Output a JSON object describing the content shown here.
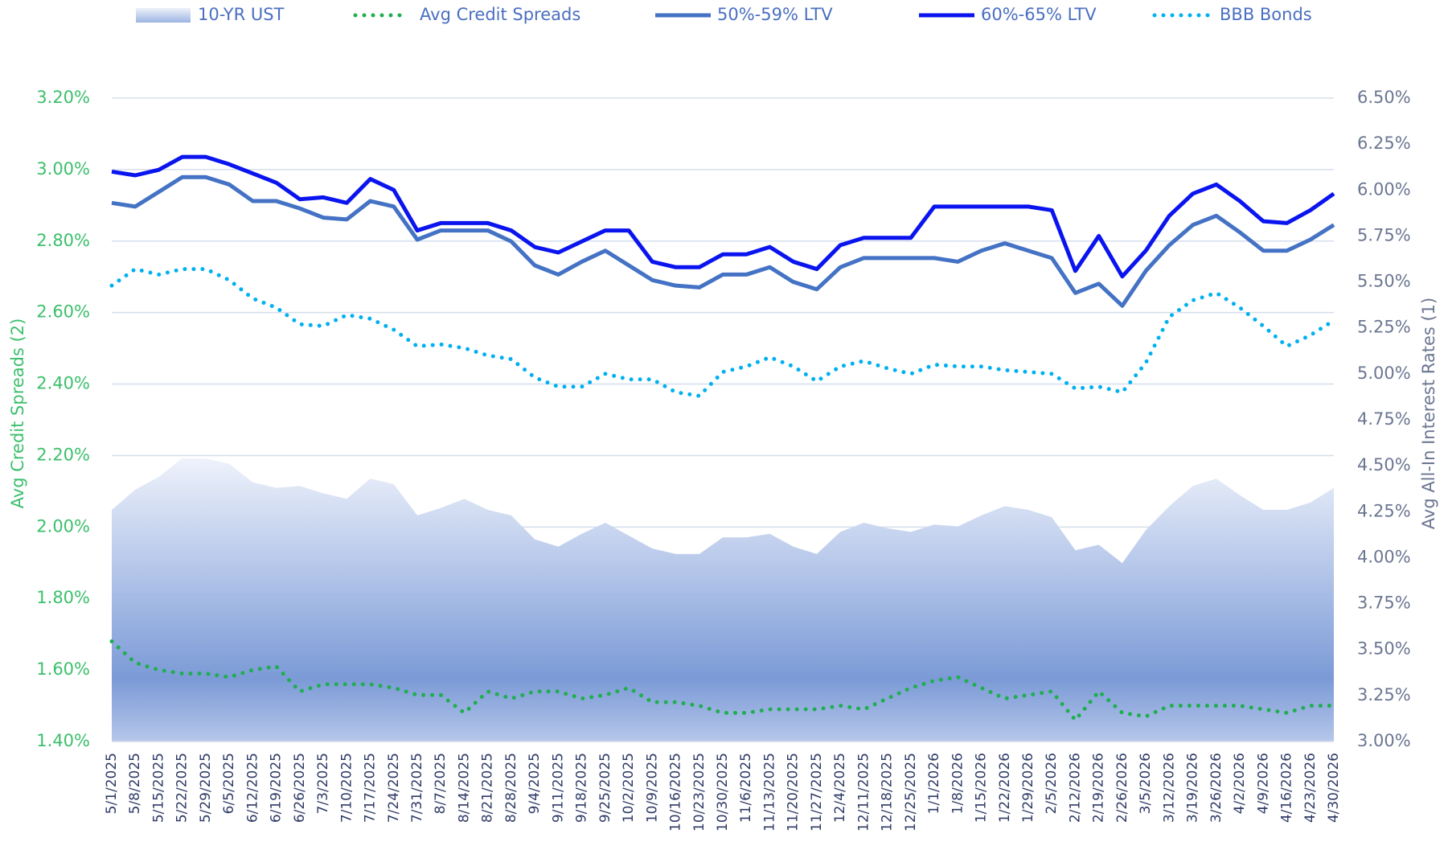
{
  "chart_data": {
    "type": "line",
    "ylabel": "Avg Credit Spreads (2)",
    "y2label": "Avg All-In Interest Rates (1)",
    "grid": true,
    "categories": [
      "5/1/2025",
      "5/8/2025",
      "5/15/2025",
      "5/22/2025",
      "5/29/2025",
      "6/5/2025",
      "6/12/2025",
      "6/19/2025",
      "6/26/2025",
      "7/3/2025",
      "7/10/2025",
      "7/17/2025",
      "7/24/2025",
      "7/31/2025",
      "8/7/2025",
      "8/14/2025",
      "8/21/2025",
      "8/28/2025",
      "9/4/2025",
      "9/11/2025",
      "9/18/2025",
      "9/25/2025",
      "10/2/2025",
      "10/9/2025",
      "10/16/2025",
      "10/23/2025",
      "10/30/2025",
      "11/6/2025",
      "11/13/2025",
      "11/20/2025",
      "11/27/2025",
      "12/4/2025",
      "12/11/2025",
      "12/18/2025",
      "12/25/2025",
      "1/1/2026",
      "1/8/2026",
      "1/15/2026",
      "1/22/2026",
      "1/29/2026",
      "2/5/2026",
      "2/12/2026",
      "2/19/2026",
      "2/26/2026",
      "3/5/2026",
      "3/12/2026",
      "3/19/2026",
      "3/26/2026",
      "4/2/2026",
      "4/9/2026",
      "4/16/2026",
      "4/23/2026",
      "4/30/2026"
    ],
    "ylim": [
      1.4,
      3.2
    ],
    "yticks": [
      {
        "value": 1.4,
        "label": "1.40%"
      },
      {
        "value": 1.6,
        "label": "1.60%"
      },
      {
        "value": 1.8,
        "label": "1.80%"
      },
      {
        "value": 2.0,
        "label": "2.00%"
      },
      {
        "value": 2.2,
        "label": "2.20%"
      },
      {
        "value": 2.4,
        "label": "2.40%"
      },
      {
        "value": 2.6,
        "label": "2.60%"
      },
      {
        "value": 2.8,
        "label": "2.80%"
      },
      {
        "value": 3.0,
        "label": "3.00%"
      },
      {
        "value": 3.2,
        "label": "3.20%"
      }
    ],
    "y2lim": [
      3.0,
      6.5
    ],
    "y2ticks": [
      {
        "value": 3.0,
        "label": "3.00%"
      },
      {
        "value": 3.25,
        "label": "3.25%"
      },
      {
        "value": 3.5,
        "label": "3.50%"
      },
      {
        "value": 3.75,
        "label": "3.75%"
      },
      {
        "value": 4.0,
        "label": "4.00%"
      },
      {
        "value": 4.25,
        "label": "4.25%"
      },
      {
        "value": 4.5,
        "label": "4.50%"
      },
      {
        "value": 4.75,
        "label": "4.75%"
      },
      {
        "value": 5.0,
        "label": "5.00%"
      },
      {
        "value": 5.25,
        "label": "5.25%"
      },
      {
        "value": 5.5,
        "label": "5.50%"
      },
      {
        "value": 5.75,
        "label": "5.75%"
      },
      {
        "value": 6.0,
        "label": "6.00%"
      },
      {
        "value": 6.25,
        "label": "6.25%"
      },
      {
        "value": 6.5,
        "label": "6.50%"
      }
    ],
    "series": [
      {
        "name": "10-YR UST",
        "type": "area",
        "color": "#7b9ad6",
        "axis": "y2",
        "values": [
          4.26,
          4.37,
          4.44,
          4.54,
          4.54,
          4.51,
          4.41,
          4.38,
          4.39,
          4.35,
          4.32,
          4.43,
          4.4,
          4.23,
          4.27,
          4.32,
          4.26,
          4.23,
          4.1,
          4.06,
          4.13,
          4.19,
          4.12,
          4.05,
          4.02,
          4.02,
          4.11,
          4.11,
          4.13,
          4.06,
          4.02,
          4.14,
          4.19,
          4.16,
          4.14,
          4.18,
          4.17,
          4.23,
          4.28,
          4.26,
          4.22,
          4.04,
          4.07,
          3.97,
          4.15,
          4.28,
          4.39,
          4.43,
          4.34,
          4.26,
          4.26,
          4.3,
          4.38
        ]
      },
      {
        "name": "Avg Credit Spreads",
        "type": "line",
        "style": "dotted",
        "color": "#1fae50",
        "values": [
          1.68,
          1.62,
          1.6,
          1.59,
          1.59,
          1.58,
          1.6,
          1.61,
          1.54,
          1.56,
          1.56,
          1.56,
          1.55,
          1.53,
          1.53,
          1.48,
          1.54,
          1.52,
          1.54,
          1.54,
          1.52,
          1.53,
          1.55,
          1.51,
          1.51,
          1.5,
          1.48,
          1.48,
          1.49,
          1.49,
          1.49,
          1.5,
          1.49,
          1.52,
          1.55,
          1.57,
          1.58,
          1.55,
          1.52,
          1.53,
          1.54,
          1.46,
          1.54,
          1.48,
          1.47,
          1.5,
          1.5,
          1.5,
          1.5,
          1.49,
          1.48,
          1.5,
          1.5
        ]
      },
      {
        "name": "50%-59% LTV",
        "type": "line",
        "style": "solid",
        "color": "#4472c4",
        "axis": "y2",
        "values": [
          5.93,
          5.91,
          5.99,
          6.07,
          6.07,
          6.03,
          5.94,
          5.94,
          5.9,
          5.85,
          5.84,
          5.94,
          5.91,
          5.73,
          5.78,
          5.78,
          5.78,
          5.72,
          5.59,
          5.54,
          5.61,
          5.67,
          5.59,
          5.51,
          5.48,
          5.47,
          5.54,
          5.54,
          5.58,
          5.5,
          5.46,
          5.58,
          5.63,
          5.63,
          5.63,
          5.63,
          5.61,
          5.67,
          5.71,
          5.67,
          5.63,
          5.44,
          5.49,
          5.37,
          5.56,
          5.7,
          5.81,
          5.86,
          5.77,
          5.67,
          5.67,
          5.73,
          5.81
        ]
      },
      {
        "name": "60%-65% LTV",
        "type": "line",
        "style": "solid",
        "color": "#0a14ee",
        "axis": "y2",
        "values": [
          6.1,
          6.08,
          6.11,
          6.18,
          6.18,
          6.14,
          6.09,
          6.04,
          5.95,
          5.96,
          5.93,
          6.06,
          6.0,
          5.78,
          5.82,
          5.82,
          5.82,
          5.78,
          5.69,
          5.66,
          5.72,
          5.78,
          5.78,
          5.61,
          5.58,
          5.58,
          5.65,
          5.65,
          5.69,
          5.61,
          5.57,
          5.7,
          5.74,
          5.74,
          5.74,
          5.91,
          5.91,
          5.91,
          5.91,
          5.91,
          5.89,
          5.56,
          5.75,
          5.53,
          5.67,
          5.86,
          5.98,
          6.03,
          5.94,
          5.83,
          5.82,
          5.89,
          5.98
        ]
      },
      {
        "name": "BBB Bonds",
        "type": "line",
        "style": "dotted",
        "color": "#00b0f0",
        "axis": "y2",
        "values": [
          5.48,
          5.57,
          5.54,
          5.57,
          5.57,
          5.51,
          5.41,
          5.36,
          5.27,
          5.26,
          5.32,
          5.3,
          5.24,
          5.15,
          5.16,
          5.14,
          5.1,
          5.08,
          4.98,
          4.93,
          4.93,
          5.0,
          4.97,
          4.97,
          4.9,
          4.88,
          5.01,
          5.04,
          5.09,
          5.04,
          4.96,
          5.04,
          5.07,
          5.03,
          5.0,
          5.05,
          5.04,
          5.04,
          5.02,
          5.01,
          5.0,
          4.92,
          4.93,
          4.9,
          5.06,
          5.31,
          5.4,
          5.44,
          5.36,
          5.26,
          5.15,
          5.21,
          5.29
        ]
      }
    ]
  }
}
